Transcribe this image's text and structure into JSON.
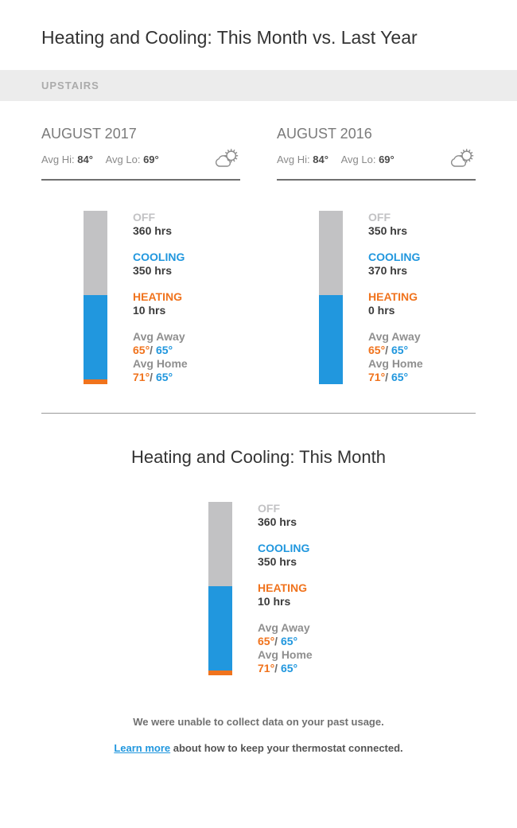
{
  "page": {
    "title": "Heating and Cooling: This Month vs. Last Year",
    "section_label": "UPSTAIRS",
    "temp_separator": "/",
    "footer": {
      "notice": "We were unable to collect data on your past usage.",
      "link_label": "Learn more",
      "link_tail": " about how to keep your thermostat connected."
    }
  },
  "colors": {
    "off": "#C2C2C4",
    "cooling": "#2197DE",
    "heating": "#F0731D",
    "band_bg": "#ECECEC",
    "band_text": "#ABABAB",
    "title_text": "#333333",
    "month_text": "#7B7B7B",
    "muted_text": "#8A8A8A",
    "dark_text": "#3B3B3B",
    "divider_dark": "#6F6F6F",
    "divider_light": "#999999",
    "link": "#2197DE"
  },
  "chart_data": [
    {
      "type": "bar",
      "variant": "stacked-single-column",
      "title": "AUGUST 2017",
      "stats": {
        "avg_hi_label": "Avg Hi:",
        "avg_hi_value": "84°",
        "avg_lo_label": "Avg Lo:",
        "avg_lo_value": "69°"
      },
      "weather_icon": "partly-cloudy-icon",
      "total_hours": 720,
      "segments": [
        {
          "key": "off",
          "label": "OFF",
          "hours": 360,
          "value_text": "360 hrs"
        },
        {
          "key": "cooling",
          "label": "COOLING",
          "hours": 350,
          "value_text": "350 hrs"
        },
        {
          "key": "heating",
          "label": "HEATING",
          "hours": 10,
          "value_text": "10 hrs"
        }
      ],
      "averages": [
        {
          "label": "Avg Away",
          "heat": "65°",
          "cool": "65°"
        },
        {
          "label": "Avg Home",
          "heat": "71°",
          "cool": "65°"
        }
      ]
    },
    {
      "type": "bar",
      "variant": "stacked-single-column",
      "title": "AUGUST 2016",
      "stats": {
        "avg_hi_label": "Avg Hi:",
        "avg_hi_value": "84°",
        "avg_lo_label": "Avg Lo:",
        "avg_lo_value": "69°"
      },
      "weather_icon": "partly-cloudy-icon",
      "total_hours": 720,
      "segments": [
        {
          "key": "off",
          "label": "OFF",
          "hours": 350,
          "value_text": "350 hrs"
        },
        {
          "key": "cooling",
          "label": "COOLING",
          "hours": 370,
          "value_text": "370 hrs"
        },
        {
          "key": "heating",
          "label": "HEATING",
          "hours": 0,
          "value_text": "0 hrs"
        }
      ],
      "averages": [
        {
          "label": "Avg Away",
          "heat": "65°",
          "cool": "65°"
        },
        {
          "label": "Avg Home",
          "heat": "71°",
          "cool": "65°"
        }
      ]
    },
    {
      "type": "bar",
      "variant": "stacked-single-column",
      "title": "Heating and Cooling: This Month",
      "total_hours": 720,
      "segments": [
        {
          "key": "off",
          "label": "OFF",
          "hours": 360,
          "value_text": "360 hrs"
        },
        {
          "key": "cooling",
          "label": "COOLING",
          "hours": 350,
          "value_text": "350 hrs"
        },
        {
          "key": "heating",
          "label": "HEATING",
          "hours": 10,
          "value_text": "10 hrs"
        }
      ],
      "averages": [
        {
          "label": "Avg Away",
          "heat": "65°",
          "cool": "65°"
        },
        {
          "label": "Avg Home",
          "heat": "71°",
          "cool": "65°"
        }
      ]
    }
  ]
}
